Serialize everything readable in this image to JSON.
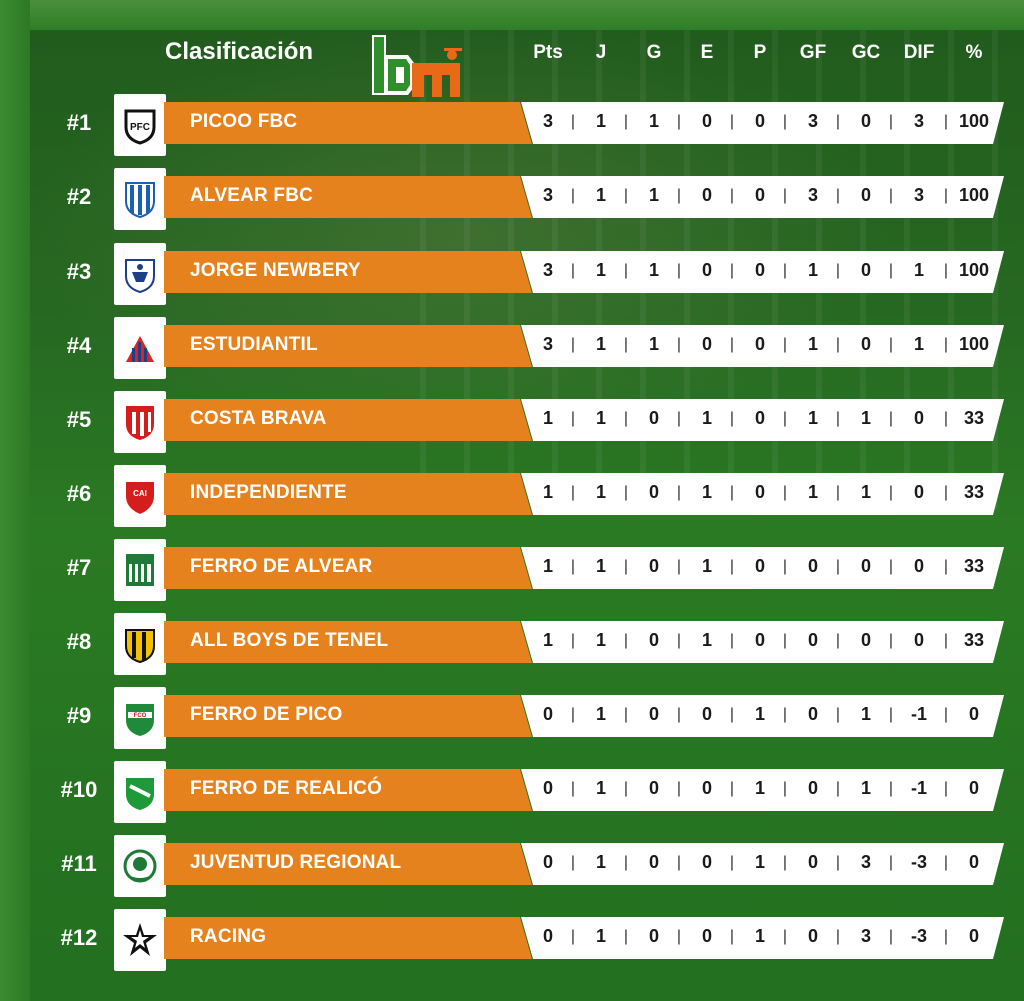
{
  "header": {
    "title": "Clasificación",
    "logo_text": "bm",
    "columns": [
      "Pts",
      "J",
      "G",
      "E",
      "P",
      "GF",
      "GC",
      "DIF",
      "%"
    ]
  },
  "teams": [
    {
      "rank": "#1",
      "name": "PICOO FBC",
      "stats": [
        "3",
        "1",
        "1",
        "0",
        "0",
        "3",
        "0",
        "3",
        "100"
      ],
      "crest_icon": "picoo-fbc-crest-icon"
    },
    {
      "rank": "#2",
      "name": "ALVEAR FBC",
      "stats": [
        "3",
        "1",
        "1",
        "0",
        "0",
        "3",
        "0",
        "3",
        "100"
      ],
      "crest_icon": "alvear-fbc-crest-icon"
    },
    {
      "rank": "#3",
      "name": "JORGE NEWBERY",
      "stats": [
        "3",
        "1",
        "1",
        "0",
        "0",
        "1",
        "0",
        "1",
        "100"
      ],
      "crest_icon": "jorge-newbery-crest-icon"
    },
    {
      "rank": "#4",
      "name": "ESTUDIANTIL",
      "stats": [
        "3",
        "1",
        "1",
        "0",
        "0",
        "1",
        "0",
        "1",
        "100"
      ],
      "crest_icon": "estudiantil-crest-icon"
    },
    {
      "rank": "#5",
      "name": "COSTA BRAVA",
      "stats": [
        "1",
        "1",
        "0",
        "1",
        "0",
        "1",
        "1",
        "0",
        "33"
      ],
      "crest_icon": "costa-brava-crest-icon"
    },
    {
      "rank": "#6",
      "name": "INDEPENDIENTE",
      "stats": [
        "1",
        "1",
        "0",
        "1",
        "0",
        "1",
        "1",
        "0",
        "33"
      ],
      "crest_icon": "independiente-crest-icon"
    },
    {
      "rank": "#7",
      "name": "FERRO DE ALVEAR",
      "stats": [
        "1",
        "1",
        "0",
        "1",
        "0",
        "0",
        "0",
        "0",
        "33"
      ],
      "crest_icon": "ferro-de-alvear-crest-icon"
    },
    {
      "rank": "#8",
      "name": "ALL BOYS DE TENEL",
      "stats": [
        "1",
        "1",
        "0",
        "1",
        "0",
        "0",
        "0",
        "0",
        "33"
      ],
      "crest_icon": "all-boys-crest-icon"
    },
    {
      "rank": "#9",
      "name": "FERRO DE PICO",
      "stats": [
        "0",
        "1",
        "0",
        "0",
        "1",
        "0",
        "1",
        "-1",
        "0"
      ],
      "crest_icon": "ferro-de-pico-crest-icon"
    },
    {
      "rank": "#10",
      "name": "FERRO DE REALICÓ",
      "stats": [
        "0",
        "1",
        "0",
        "0",
        "1",
        "0",
        "1",
        "-1",
        "0"
      ],
      "crest_icon": "ferro-de-realico-crest-icon"
    },
    {
      "rank": "#11",
      "name": "JUVENTUD REGIONAL",
      "stats": [
        "0",
        "1",
        "0",
        "0",
        "1",
        "0",
        "3",
        "-3",
        "0"
      ],
      "crest_icon": "juventud-regional-crest-icon"
    },
    {
      "rank": "#12",
      "name": "RACING",
      "stats": [
        "0",
        "1",
        "0",
        "0",
        "1",
        "0",
        "3",
        "-3",
        "0"
      ],
      "crest_icon": "racing-crest-icon"
    }
  ],
  "colors": {
    "background": "#2a7a22",
    "name_bar": "#e6821d",
    "stats_bar": "#ffffff"
  }
}
